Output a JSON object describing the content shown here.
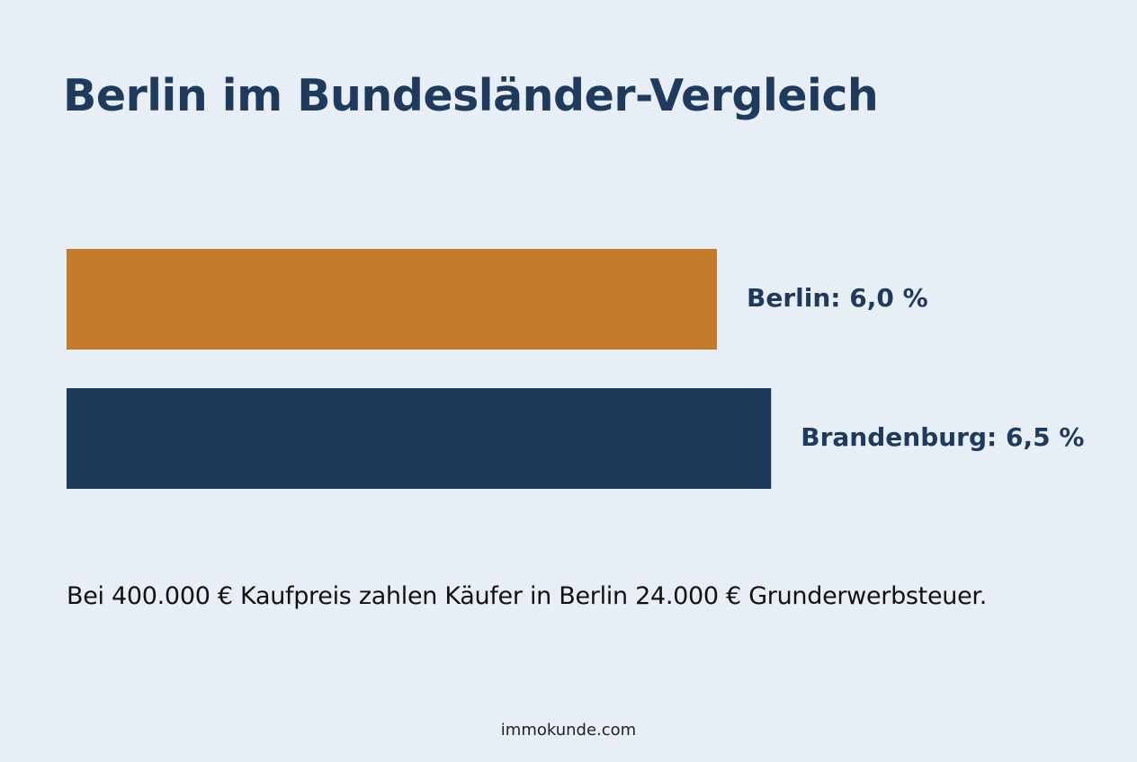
{
  "chart_data": {
    "type": "bar",
    "orientation": "horizontal",
    "title": "Berlin im Bundesländer-Vergleich",
    "categories": [
      "Berlin",
      "Brandenburg"
    ],
    "values": [
      6.0,
      6.5
    ],
    "data_labels": [
      "Berlin: 6,0 %",
      "Brandenburg: 6,5 %"
    ],
    "unit": "%",
    "xlim": [
      0,
      7
    ],
    "colors": [
      "#c47c2b",
      "#1e3a5a"
    ],
    "grid": false,
    "legend": "none"
  },
  "note": "Bei 400.000 € Kaufpreis zahlen Käufer in Berlin 24.000 € Grunderwerbsteuer.",
  "footer": "immokunde.com"
}
